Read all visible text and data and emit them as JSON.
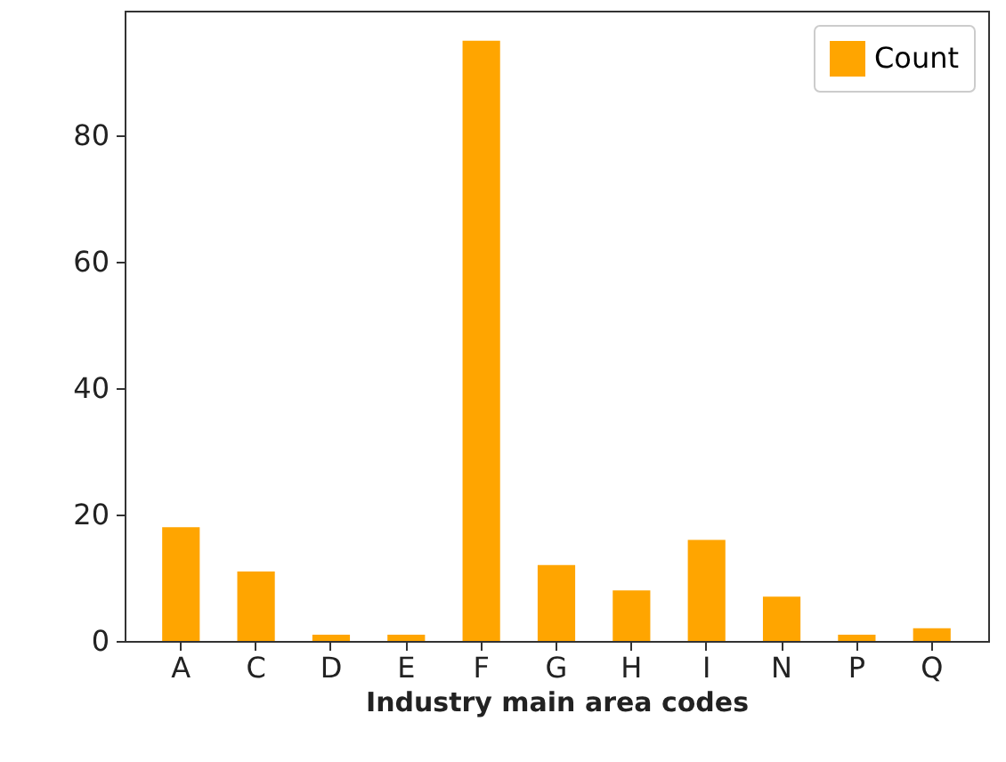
{
  "chart_data": {
    "type": "bar",
    "xlabel": "Industry main area codes",
    "categories": [
      "A",
      "C",
      "D",
      "E",
      "F",
      "G",
      "H",
      "I",
      "N",
      "P",
      "Q"
    ],
    "series": [
      {
        "name": "Count",
        "color": "#ffa500",
        "values": [
          18,
          11,
          1,
          1,
          95,
          12,
          8,
          16,
          7,
          1,
          2
        ]
      }
    ],
    "ylim": [
      0,
      99.75
    ],
    "yticks": [
      0,
      20,
      40,
      60,
      80
    ],
    "grid": false,
    "legend": "top right"
  }
}
